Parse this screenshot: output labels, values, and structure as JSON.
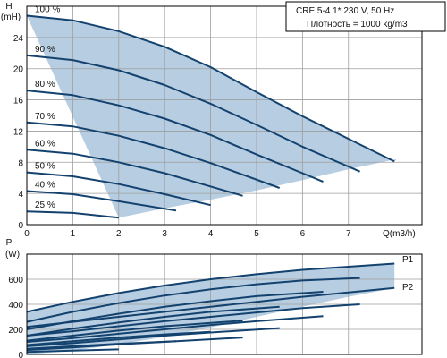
{
  "colors": {
    "envelope": "#b7cde1",
    "curve": "#13426e",
    "grid": "#9e9e9e",
    "axis": "#000000"
  },
  "info": {
    "line1": "CRE 5-4    1* 230 V, 50 Hz",
    "line2": "Плотность = 1000 kg/m3"
  },
  "chart_data": [
    {
      "type": "line",
      "name": "head",
      "ylabel_top": "H",
      "ylabel_unit": "(mH)",
      "xlabel": "Q(m3/h)",
      "x_ticks": [
        0,
        1,
        2,
        3,
        4,
        5,
        6,
        7
      ],
      "y_ticks": [
        0,
        4,
        8,
        12,
        16,
        20,
        24
      ],
      "xlim": [
        0,
        8.6
      ],
      "ylim": [
        0,
        28
      ],
      "grid": true,
      "envelope": [
        [
          0,
          26.8
        ],
        [
          1,
          26.2
        ],
        [
          2,
          24.8
        ],
        [
          3,
          22.8
        ],
        [
          4,
          20.2
        ],
        [
          5,
          17.0
        ],
        [
          6,
          13.9
        ],
        [
          7,
          11.0
        ],
        [
          8.0,
          8.1
        ],
        [
          8.05,
          8.4
        ],
        [
          8.05,
          8.4
        ],
        [
          7,
          7.1
        ],
        [
          6,
          5.7
        ],
        [
          5,
          4.4
        ],
        [
          4,
          3.2
        ],
        [
          3,
          2.1
        ],
        [
          2,
          0.9
        ],
        [
          2.0,
          0.9
        ]
      ],
      "curves": [
        {
          "label": "100 %",
          "points": [
            [
              0,
              26.8
            ],
            [
              1,
              26.2
            ],
            [
              2,
              24.8
            ],
            [
              3,
              22.8
            ],
            [
              4,
              20.2
            ],
            [
              5,
              17.0
            ],
            [
              6,
              13.9
            ],
            [
              7,
              11.0
            ],
            [
              8.0,
              8.1
            ]
          ]
        },
        {
          "label": "90 %",
          "points": [
            [
              0,
              21.7
            ],
            [
              1,
              21.1
            ],
            [
              2,
              19.8
            ],
            [
              3,
              17.9
            ],
            [
              4,
              15.5
            ],
            [
              5,
              12.8
            ],
            [
              6,
              10.0
            ],
            [
              7.25,
              6.8
            ]
          ]
        },
        {
          "label": "80 %",
          "points": [
            [
              0,
              17.2
            ],
            [
              1,
              16.6
            ],
            [
              2,
              15.3
            ],
            [
              3,
              13.6
            ],
            [
              4,
              11.5
            ],
            [
              5,
              9.0
            ],
            [
              6.0,
              6.6
            ],
            [
              6.45,
              5.5
            ]
          ]
        },
        {
          "label": "70 %",
          "points": [
            [
              0,
              13.1
            ],
            [
              1,
              12.6
            ],
            [
              2,
              11.4
            ],
            [
              3,
              9.8
            ],
            [
              4,
              7.9
            ],
            [
              5.5,
              4.7
            ]
          ]
        },
        {
          "label": "60 %",
          "points": [
            [
              0,
              9.6
            ],
            [
              1,
              9.1
            ],
            [
              2,
              8.0
            ],
            [
              3,
              6.6
            ],
            [
              4.7,
              3.7
            ]
          ]
        },
        {
          "label": "50 %",
          "points": [
            [
              0,
              6.7
            ],
            [
              1,
              6.2
            ],
            [
              2,
              5.2
            ],
            [
              3,
              3.9
            ],
            [
              4.0,
              2.5
            ]
          ]
        },
        {
          "label": "40 %",
          "points": [
            [
              0,
              4.3
            ],
            [
              1,
              3.9
            ],
            [
              2,
              3.0
            ],
            [
              3.25,
              1.8
            ]
          ]
        },
        {
          "label": "25 %",
          "points": [
            [
              0,
              1.7
            ],
            [
              1,
              1.5
            ],
            [
              2.0,
              0.9
            ]
          ]
        }
      ]
    },
    {
      "type": "line",
      "name": "power",
      "ylabel_top": "P",
      "ylabel_unit": "(W)",
      "y_ticks": [
        0,
        200,
        400,
        600
      ],
      "xlim": [
        0,
        8.6
      ],
      "ylim": [
        0,
        800
      ],
      "grid": true,
      "envelope": [
        [
          0,
          340
        ],
        [
          1,
          420
        ],
        [
          2,
          490
        ],
        [
          3,
          550
        ],
        [
          4,
          600
        ],
        [
          5,
          640
        ],
        [
          6,
          675
        ],
        [
          7,
          700
        ],
        [
          8.0,
          725
        ],
        [
          8.0,
          530
        ],
        [
          7,
          460
        ],
        [
          6,
          380
        ],
        [
          5,
          300
        ],
        [
          4,
          215
        ],
        [
          3,
          140
        ],
        [
          2,
          80
        ],
        [
          1,
          30
        ],
        [
          0,
          0
        ]
      ],
      "labels": [
        "P1",
        "P2"
      ],
      "curves": [
        {
          "label": "P1",
          "points": [
            [
              0,
              340
            ],
            [
              1,
              420
            ],
            [
              2,
              490
            ],
            [
              3,
              550
            ],
            [
              4,
              600
            ],
            [
              5,
              640
            ],
            [
              6,
              675
            ],
            [
              7,
              700
            ],
            [
              8.0,
              725
            ]
          ]
        },
        {
          "label": "",
          "points": [
            [
              0,
              260
            ],
            [
              1,
              340
            ],
            [
              2,
              410
            ],
            [
              3,
              470
            ],
            [
              4,
              520
            ],
            [
              5,
              560
            ],
            [
              6,
              590
            ],
            [
              7.25,
              610
            ]
          ]
        },
        {
          "label": "",
          "points": [
            [
              0,
              200
            ],
            [
              1,
              265
            ],
            [
              2,
              325
            ],
            [
              3,
              380
            ],
            [
              4,
              425
            ],
            [
              5,
              465
            ],
            [
              6.45,
              500
            ]
          ]
        },
        {
          "label": "",
          "points": [
            [
              0,
              150
            ],
            [
              1,
              205
            ],
            [
              2,
              255
            ],
            [
              3,
              300
            ],
            [
              4,
              340
            ],
            [
              5.5,
              380
            ]
          ]
        },
        {
          "label": "",
          "points": [
            [
              0,
              110
            ],
            [
              1,
              150
            ],
            [
              2,
              190
            ],
            [
              3,
              225
            ],
            [
              4.7,
              270
            ]
          ]
        },
        {
          "label": "",
          "points": [
            [
              0,
              75
            ],
            [
              1,
              105
            ],
            [
              2,
              135
            ],
            [
              3,
              160
            ],
            [
              4.0,
              180
            ]
          ]
        },
        {
          "label": "",
          "points": [
            [
              0,
              45
            ],
            [
              1,
              65
            ],
            [
              2,
              85
            ],
            [
              3.25,
              105
            ]
          ]
        },
        {
          "label": "",
          "points": [
            [
              0,
              20
            ],
            [
              1,
              30
            ],
            [
              2.0,
              40
            ]
          ]
        },
        {
          "label": "P2",
          "points": [
            [
              0,
              220
            ],
            [
              1,
              260
            ],
            [
              2,
              300
            ],
            [
              3,
              340
            ],
            [
              4,
              380
            ],
            [
              5,
              420
            ],
            [
              6,
              460
            ],
            [
              7,
              495
            ],
            [
              8.0,
              530
            ]
          ]
        },
        {
          "label": "",
          "points": [
            [
              0,
              150
            ],
            [
              1,
              185
            ],
            [
              2,
              225
            ],
            [
              3,
              265
            ],
            [
              4,
              300
            ],
            [
              5,
              335
            ],
            [
              6,
              370
            ],
            [
              7.25,
              400
            ]
          ]
        },
        {
          "label": "",
          "points": [
            [
              0,
              100
            ],
            [
              1,
              130
            ],
            [
              2,
              165
            ],
            [
              3,
              200
            ],
            [
              4,
              235
            ],
            [
              5,
              265
            ],
            [
              6.45,
              305
            ]
          ]
        },
        {
          "label": "",
          "points": [
            [
              0,
              65
            ],
            [
              1,
              90
            ],
            [
              2,
              120
            ],
            [
              3,
              150
            ],
            [
              4,
              175
            ],
            [
              5.5,
              210
            ]
          ]
        },
        {
          "label": "",
          "points": [
            [
              0,
              35
            ],
            [
              1,
              55
            ],
            [
              2,
              80
            ],
            [
              3,
              100
            ],
            [
              4.7,
              135
            ]
          ]
        }
      ]
    }
  ]
}
